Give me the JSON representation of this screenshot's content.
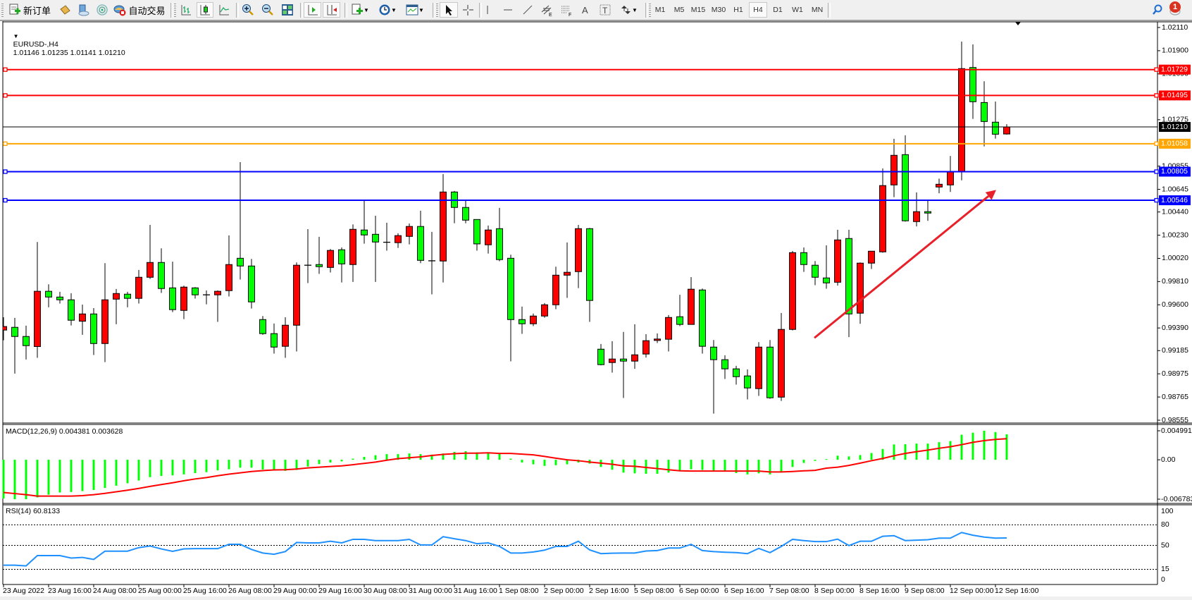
{
  "toolbar": {
    "new_order_label": "新订单",
    "auto_trading_label": "自动交易",
    "timeframes": [
      "M1",
      "M5",
      "M15",
      "M30",
      "H1",
      "H4",
      "D1",
      "W1",
      "MN"
    ],
    "active_timeframe": "H4",
    "notification_count": "1",
    "icons": [
      "new-order-icon",
      "metaeditor-icon",
      "navigator-icon",
      "signals-icon",
      "auto-trading-icon",
      "bar-chart-icon",
      "candlestick-icon",
      "line-chart-icon",
      "zoom-in-icon",
      "zoom-out-icon",
      "tile-windows-icon",
      "auto-scroll-icon",
      "chart-shift-icon",
      "indicators-icon",
      "periods-clock-icon",
      "templates-icon",
      "cursor-icon",
      "crosshair-icon",
      "vertical-line-icon",
      "horizontal-line-icon",
      "trendline-icon",
      "equidistant-channel-icon",
      "fibonacci-icon",
      "text-icon",
      "text-label-icon",
      "arrows-icon",
      "search-icon",
      "chat-icon"
    ]
  },
  "chart": {
    "title": "EURUSD-,H4",
    "ohlc": "1.01146 1.01235 1.01141 1.01210",
    "macd_title": "MACD(12,26,9) 0.004381 0.003628",
    "rsi_title": "RSI(14) 60.8133"
  },
  "chart_data": {
    "type": "candlestick",
    "symbol": "EURUSD-",
    "timeframe": "H4",
    "ylim": [
      0.98555,
      1.0211
    ],
    "price_ticks": [
      "1.02110",
      "1.01900",
      "1.01690",
      "1.01275",
      "1.00855",
      "1.00645",
      "1.00440",
      "1.00230",
      "1.00020",
      "0.99810",
      "0.99600",
      "0.99390",
      "0.99185",
      "0.98975",
      "0.98765",
      "0.98555"
    ],
    "time_labels": [
      "23 Aug 2022",
      "23 Aug 16:00",
      "24 Aug 08:00",
      "25 Aug 00:00",
      "25 Aug 16:00",
      "26 Aug 08:00",
      "29 Aug 00:00",
      "29 Aug 16:00",
      "30 Aug 08:00",
      "31 Aug 00:00",
      "31 Aug 16:00",
      "1 Sep 08:00",
      "2 Sep 00:00",
      "2 Sep 16:00",
      "5 Sep 08:00",
      "6 Sep 00:00",
      "6 Sep 16:00",
      "7 Sep 08:00",
      "8 Sep 00:00",
      "8 Sep 16:00",
      "9 Sep 08:00",
      "12 Sep 00:00",
      "12 Sep 16:00"
    ],
    "candle_fields": [
      "open",
      "high",
      "low",
      "close"
    ],
    "candles": [
      [
        0.99371,
        0.99487,
        0.99279,
        0.99403
      ],
      [
        0.99396,
        0.99481,
        0.98977,
        0.99313
      ],
      [
        0.99313,
        0.99411,
        0.99105,
        0.9923
      ],
      [
        0.99222,
        1.00168,
        0.9912,
        0.99722
      ],
      [
        0.99722,
        0.99785,
        0.99577,
        0.9967
      ],
      [
        0.9967,
        0.99717,
        0.99611,
        0.99645
      ],
      [
        0.99645,
        0.99705,
        0.99413,
        0.9946
      ],
      [
        0.99451,
        0.99602,
        0.99328,
        0.99517
      ],
      [
        0.99517,
        0.9957,
        0.99145,
        0.99249
      ],
      [
        0.99249,
        0.99977,
        0.99081,
        0.99645
      ],
      [
        0.99651,
        0.99743,
        0.99424,
        0.99702
      ],
      [
        0.99696,
        0.99717,
        0.99577,
        0.99658
      ],
      [
        0.99658,
        0.99915,
        0.99611,
        0.99849
      ],
      [
        0.99849,
        1.00323,
        0.99834,
        0.99983
      ],
      [
        0.99983,
        1.00111,
        0.99707,
        0.99747
      ],
      [
        0.99753,
        0.9999,
        0.99534,
        0.99556
      ],
      [
        0.99549,
        0.99773,
        0.9947,
        0.9976
      ],
      [
        0.99753,
        0.9976,
        0.99656,
        0.9969
      ],
      [
        0.9969,
        0.9973,
        0.99604,
        0.9969
      ],
      [
        0.9969,
        0.9973,
        0.99445,
        0.99722
      ],
      [
        0.99728,
        1.00228,
        0.99675,
        0.99964
      ],
      [
        1.00021,
        1.00891,
        0.99828,
        0.99951
      ],
      [
        0.99951,
        1.00015,
        0.99566,
        0.99626
      ],
      [
        0.99466,
        0.99498,
        0.99328,
        0.99339
      ],
      [
        0.99339,
        0.9943,
        0.99158,
        0.99217
      ],
      [
        0.99224,
        0.99487,
        0.9912,
        0.99415
      ],
      [
        0.99415,
        0.99983,
        0.99177,
        0.99958
      ],
      [
        0.99958,
        1.00285,
        0.99796,
        0.99958
      ],
      [
        0.99964,
        1.00215,
        0.99879,
        0.99945
      ],
      [
        0.99938,
        1.00104,
        0.99892,
        1.00092
      ],
      [
        1.00098,
        1.00119,
        0.99802,
        0.9997
      ],
      [
        0.99964,
        1.00328,
        0.99807,
        1.00283
      ],
      [
        1.00277,
        1.00545,
        1.00153,
        1.00232
      ],
      [
        1.00238,
        1.00406,
        0.99807,
        1.00168
      ],
      [
        1.00166,
        1.00343,
        1.0009,
        1.00166
      ],
      [
        1.00162,
        1.00247,
        1.00115,
        1.00226
      ],
      [
        1.00219,
        1.00336,
        1.00147,
        1.00309
      ],
      [
        1.00309,
        1.00451,
        0.99977,
        1.00002
      ],
      [
        0.99998,
        1.0026,
        0.99694,
        0.99998
      ],
      [
        0.99996,
        1.00783,
        0.99802,
        1.00621
      ],
      [
        1.00621,
        1.0063,
        1.00338,
        1.00481
      ],
      [
        1.00481,
        1.00545,
        1.00338,
        1.00366
      ],
      [
        1.00372,
        1.00372,
        1.0009,
        1.00151
      ],
      [
        1.00143,
        1.00317,
        1.00064,
        1.00277
      ],
      [
        1.00289,
        1.00477,
        0.99994,
        1.00009
      ],
      [
        1.00021,
        1.00053,
        0.99088,
        0.99466
      ],
      [
        0.99466,
        0.99583,
        0.99337,
        0.99428
      ],
      [
        0.99428,
        0.9952,
        0.99407,
        0.99498
      ],
      [
        0.99498,
        0.99615,
        0.99483,
        0.996
      ],
      [
        0.996,
        0.99945,
        0.9956,
        0.99868
      ],
      [
        0.99868,
        1.00164,
        0.99662,
        0.99894
      ],
      [
        0.999,
        1.00323,
        0.99751,
        1.00289
      ],
      [
        1.00289,
        1.00296,
        0.99445,
        0.99639
      ],
      [
        0.99198,
        0.99245,
        0.99052,
        0.99058
      ],
      [
        0.99077,
        0.99271,
        0.98986,
        0.99109
      ],
      [
        0.99109,
        0.99354,
        0.98756,
        0.9909
      ],
      [
        0.9909,
        0.99424,
        0.9902,
        0.99147
      ],
      [
        0.99154,
        0.99334,
        0.99122,
        0.99275
      ],
      [
        0.99277,
        0.99341,
        0.99254,
        0.9929
      ],
      [
        0.99288,
        0.99507,
        0.99177,
        0.99485
      ],
      [
        0.99492,
        0.9969,
        0.99407,
        0.99422
      ],
      [
        0.99422,
        0.99851,
        0.99422,
        0.99741
      ],
      [
        0.99734,
        0.99747,
        0.99158,
        0.99224
      ],
      [
        0.99217,
        0.99281,
        0.98615,
        0.99103
      ],
      [
        0.99103,
        0.99143,
        0.98928,
        0.9902
      ],
      [
        0.9902,
        0.99047,
        0.98877,
        0.98949
      ],
      [
        0.98956,
        0.99015,
        0.98743,
        0.98847
      ],
      [
        0.98841,
        0.99262,
        0.98775,
        0.99217
      ],
      [
        0.99217,
        0.99281,
        0.98749,
        0.98758
      ],
      [
        0.98764,
        0.99526,
        0.9873,
        0.99377
      ],
      [
        0.99377,
        1.00087,
        0.99368,
        1.00072
      ],
      [
        1.00072,
        1.00119,
        0.99898,
        0.99964
      ],
      [
        0.99958,
        0.99996,
        0.99777,
        0.99849
      ],
      [
        0.99843,
        1.00138,
        0.99745,
        0.99798
      ],
      [
        0.99804,
        1.00279,
        0.99773,
        1.00187
      ],
      [
        1.002,
        1.00279,
        0.99307,
        0.99517
      ],
      [
        0.99524,
        0.99983,
        0.99428,
        0.99977
      ],
      [
        0.99977,
        1.00085,
        0.99924,
        1.00085
      ],
      [
        1.00079,
        1.00834,
        1.00072,
        1.00679
      ],
      [
        1.00685,
        1.01102,
        1.00574,
        1.00953
      ],
      [
        1.00959,
        1.01134,
        1.00353,
        1.0036
      ],
      [
        1.00353,
        1.00617,
        1.00309,
        1.00443
      ],
      [
        1.00443,
        1.00545,
        1.0036,
        1.0043
      ],
      [
        1.00666,
        1.00742,
        1.00609,
        1.00691
      ],
      [
        1.00685,
        1.00947,
        1.00621,
        1.00804
      ],
      [
        1.00802,
        1.01982,
        1.00727,
        1.01738
      ],
      [
        1.01748,
        1.01957,
        1.01283,
        1.01438
      ],
      [
        1.01431,
        1.01623,
        1.01034,
        1.01259
      ],
      [
        1.01253,
        1.0144,
        1.01104,
        1.01144
      ],
      [
        1.01146,
        1.01235,
        1.01141,
        1.0121
      ]
    ],
    "horizontal_lines": [
      {
        "price": "1.01729",
        "color": "#ff0000"
      },
      {
        "price": "1.01495",
        "color": "#ff0000"
      },
      {
        "price": "1.01058",
        "color": "#ffa500"
      },
      {
        "price": "1.00805",
        "color": "#0000ff"
      },
      {
        "price": "1.00546",
        "color": "#0000ff"
      }
    ],
    "bid_line": {
      "price": "1.01210",
      "color": "#000000"
    },
    "trend_arrow": {
      "from": {
        "candle": "8 Sep 00:00",
        "price": 0.993
      },
      "to": {
        "candle": "12 Sep 16:00",
        "price": 1.0064
      },
      "color": "#e8202a"
    },
    "colors": {
      "bull": "#ff0000",
      "bear": "#00ff00",
      "wick": "#000000",
      "background": "#ffffff"
    },
    "macd": {
      "params": "12,26,9",
      "ylim": [
        -0.006783,
        0.004991
      ],
      "axis_labels": [
        "0.004991",
        "0.00",
        "-0.006783"
      ],
      "histogram_color": "#00ff00",
      "signal_color": "#ff0000",
      "main": [
        -0.00667,
        -0.00679,
        -0.006783,
        -0.00648,
        -0.00601,
        -0.00563,
        -0.00555,
        -0.00539,
        -0.0052,
        -0.00485,
        -0.00446,
        -0.00404,
        -0.00357,
        -0.00299,
        -0.00279,
        -0.00268,
        -0.00252,
        -0.00229,
        -0.00213,
        -0.00182,
        -0.00163,
        -0.00136,
        -0.00136,
        -0.00167,
        -0.00182,
        -0.0019,
        -0.00175,
        -0.00116,
        -0.00074,
        -0.00047,
        -0.00027,
        0.00019,
        0.0005,
        0.00078,
        0.00097,
        0.00097,
        0.00109,
        0.00097,
        0.00089,
        0.00109,
        0.00136,
        0.00147,
        0.00128,
        0.00128,
        0.00109,
        0.00019,
        -0.00047,
        -0.00078,
        -0.00105,
        -0.00093,
        -0.00078,
        -0.00047,
        -0.00066,
        -0.00124,
        -0.00171,
        -0.00221,
        -0.00233,
        -0.00241,
        -0.00241,
        -0.00221,
        -0.00182,
        -0.00163,
        -0.00175,
        -0.00194,
        -0.00202,
        -0.00229,
        -0.00252,
        -0.00233,
        -0.00252,
        -0.00202,
        -0.00124,
        -0.00054,
        -0.00019,
        0.00012,
        0.0007,
        0.00058,
        0.00081,
        0.00116,
        0.00186,
        0.00264,
        0.00268,
        0.00279,
        0.00279,
        0.00303,
        0.00322,
        0.00431,
        0.00466,
        0.004991,
        0.00477,
        0.004381
      ],
      "signal": [
        -0.00563,
        -0.00582,
        -0.00601,
        -0.00625,
        -0.00625,
        -0.00625,
        -0.00625,
        -0.00617,
        -0.00601,
        -0.00578,
        -0.00551,
        -0.00524,
        -0.00493,
        -0.00458,
        -0.00427,
        -0.00396,
        -0.00361,
        -0.0033,
        -0.00307,
        -0.00275,
        -0.00248,
        -0.00225,
        -0.00202,
        -0.00186,
        -0.00175,
        -0.00171,
        -0.00159,
        -0.0014,
        -0.00128,
        -0.00116,
        -0.00105,
        -0.00085,
        -0.00062,
        -0.00039,
        -8e-05,
        0.00019,
        0.00035,
        0.0005,
        0.00074,
        0.00093,
        0.00105,
        0.00113,
        0.00113,
        0.0012,
        0.00109,
        0.00109,
        0.00097,
        0.00085,
        0.00058,
        0.00027,
        0.0,
        -0.00016,
        -0.00039,
        -0.00058,
        -0.00078,
        -0.00105,
        -0.00113,
        -0.00132,
        -0.00151,
        -0.00171,
        -0.0019,
        -0.00194,
        -0.00194,
        -0.00194,
        -0.00194,
        -0.00194,
        -0.00194,
        -0.00194,
        -0.0021,
        -0.0021,
        -0.00202,
        -0.0019,
        -0.00182,
        -0.00144,
        -0.00128,
        -0.00097,
        -0.00058,
        -0.00016,
        0.00023,
        0.0007,
        0.00109,
        0.0014,
        0.00167,
        0.00198,
        0.00225,
        0.0026,
        0.003,
        0.0033,
        0.0035,
        0.003628
      ]
    },
    "rsi": {
      "period": 14,
      "ylim": [
        0,
        100
      ],
      "levels": [
        80,
        50,
        15
      ],
      "axis_labels": [
        "100",
        "80",
        "50",
        "15",
        "0"
      ],
      "color": "#1e90ff",
      "values": [
        21,
        21,
        20,
        35,
        35,
        35,
        31.5,
        32.4,
        29.4,
        41.5,
        41.5,
        41.5,
        46.7,
        49.1,
        44.8,
        41.2,
        44.8,
        45.2,
        45.2,
        45.2,
        51.5,
        51.5,
        44,
        38.8,
        37,
        40.9,
        54.2,
        53.6,
        53.6,
        56,
        53.6,
        58.8,
        58.8,
        57,
        57,
        57,
        58.8,
        50.6,
        50.6,
        62.7,
        59.7,
        57,
        52.4,
        53.6,
        48.5,
        38.8,
        38.8,
        40.3,
        43,
        48.5,
        48.5,
        56,
        43.3,
        37.9,
        38.5,
        38.8,
        38.8,
        41.8,
        42.4,
        46.1,
        46.1,
        51.5,
        42.4,
        40.9,
        40,
        39.4,
        37.9,
        45.5,
        39.4,
        48.5,
        58.8,
        57,
        55.5,
        55.5,
        59.1,
        49.7,
        56,
        56,
        63.3,
        64.2,
        57,
        57.6,
        58.2,
        60.6,
        60.6,
        68.8,
        64.8,
        62.1,
        60.6,
        60.8133
      ]
    }
  }
}
